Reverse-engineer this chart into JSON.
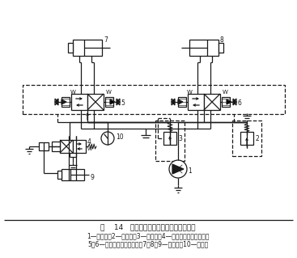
{
  "title": "图    14   减压阀出口压力不稳定系统示例图",
  "legend1": "1—定量泵；2—溢流阀；3—减压阀；4—二位四通电磁换向阀；",
  "legend2": "5、6—二位四通电液换向阀；7、8、9—液压缸；10—压力表",
  "bg": "#ffffff",
  "lc": "#1a1a1a",
  "lw": 0.9
}
